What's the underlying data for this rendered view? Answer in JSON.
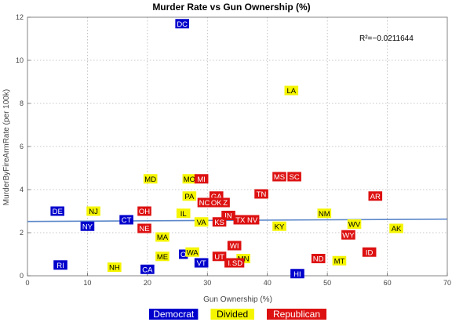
{
  "chart_data": {
    "type": "scatter",
    "title": "Murder Rate vs Gun Ownership (%)",
    "xlabel": "Gun Ownership (%)",
    "ylabel": "MurderByFireArmRate  (per 100k)",
    "xlim": [
      0,
      70
    ],
    "ylim": [
      0,
      12
    ],
    "x_ticks": [
      0,
      10,
      20,
      30,
      40,
      50,
      60,
      70
    ],
    "y_ticks": [
      0,
      2,
      4,
      6,
      8,
      10,
      12
    ],
    "grid": true,
    "annotation": "R²=−0.0211644",
    "trendline": {
      "x": [
        0,
        70
      ],
      "y": [
        2.52,
        2.63
      ]
    },
    "legend_position": "bottom",
    "colors": {
      "Democrat": "#0000cc",
      "Divided": "#f5f500",
      "Republican": "#dd1111"
    },
    "series": [
      {
        "name": "Democrat",
        "points": [
          {
            "label": "DC",
            "x": 25.8,
            "y": 11.7
          },
          {
            "label": "DE",
            "x": 5,
            "y": 3.0
          },
          {
            "label": "NY",
            "x": 10,
            "y": 2.3
          },
          {
            "label": "CT",
            "x": 16.5,
            "y": 2.6
          },
          {
            "label": "RI",
            "x": 5.5,
            "y": 0.5
          },
          {
            "label": "CA",
            "x": 20,
            "y": 0.3
          },
          {
            "label": "O",
            "x": 26,
            "y": 1.0
          },
          {
            "label": "VT",
            "x": 29,
            "y": 0.6
          },
          {
            "label": "HI",
            "x": 45,
            "y": 0.1
          }
        ]
      },
      {
        "name": "Divided",
        "points": [
          {
            "label": "LA",
            "x": 44,
            "y": 8.6
          },
          {
            "label": "MD",
            "x": 20.5,
            "y": 4.5
          },
          {
            "label": "MO",
            "x": 27,
            "y": 4.5
          },
          {
            "label": "PA",
            "x": 27,
            "y": 3.7
          },
          {
            "label": "NJ",
            "x": 11,
            "y": 3.0
          },
          {
            "label": "IL",
            "x": 26,
            "y": 2.9
          },
          {
            "label": "VA",
            "x": 29,
            "y": 2.5
          },
          {
            "label": "MA",
            "x": 22.5,
            "y": 1.8
          },
          {
            "label": "ME",
            "x": 22.5,
            "y": 0.9
          },
          {
            "label": "WA",
            "x": 27.5,
            "y": 1.1
          },
          {
            "label": "NH",
            "x": 14.5,
            "y": 0.4
          },
          {
            "label": "MN",
            "x": 36,
            "y": 0.8
          },
          {
            "label": "KY",
            "x": 42,
            "y": 2.3
          },
          {
            "label": "NM",
            "x": 49.5,
            "y": 2.9
          },
          {
            "label": "WV",
            "x": 54.5,
            "y": 2.4
          },
          {
            "label": "AK",
            "x": 61.5,
            "y": 2.2
          },
          {
            "label": "MT",
            "x": 52,
            "y": 0.7
          }
        ]
      },
      {
        "name": "Republican",
        "points": [
          {
            "label": "MI",
            "x": 29,
            "y": 4.5
          },
          {
            "label": "MS",
            "x": 42,
            "y": 4.6
          },
          {
            "label": "SC",
            "x": 44.5,
            "y": 4.6
          },
          {
            "label": "GA",
            "x": 31.5,
            "y": 3.7
          },
          {
            "label": "TN",
            "x": 39,
            "y": 3.8
          },
          {
            "label": "NC",
            "x": 29.5,
            "y": 3.4
          },
          {
            "label": "OK",
            "x": 31.5,
            "y": 3.4
          },
          {
            "label": "Z",
            "x": 33,
            "y": 3.4
          },
          {
            "label": "OH",
            "x": 19.5,
            "y": 3.0
          },
          {
            "label": "IN",
            "x": 33.5,
            "y": 2.8
          },
          {
            "label": "KS",
            "x": 32,
            "y": 2.5
          },
          {
            "label": "TX",
            "x": 35.5,
            "y": 2.6
          },
          {
            "label": "NV",
            "x": 37.5,
            "y": 2.6
          },
          {
            "label": "AR",
            "x": 58,
            "y": 3.7
          },
          {
            "label": "NE",
            "x": 19.5,
            "y": 2.2
          },
          {
            "label": "WY",
            "x": 53.5,
            "y": 1.9
          },
          {
            "label": "UT",
            "x": 32,
            "y": 0.9
          },
          {
            "label": "WI",
            "x": 34.5,
            "y": 1.4
          },
          {
            "label": "IA",
            "x": 34,
            "y": 0.6
          },
          {
            "label": "SD",
            "x": 35,
            "y": 0.6
          },
          {
            "label": "ND",
            "x": 48.5,
            "y": 0.8
          },
          {
            "label": "ID",
            "x": 57,
            "y": 1.1
          }
        ]
      }
    ]
  }
}
